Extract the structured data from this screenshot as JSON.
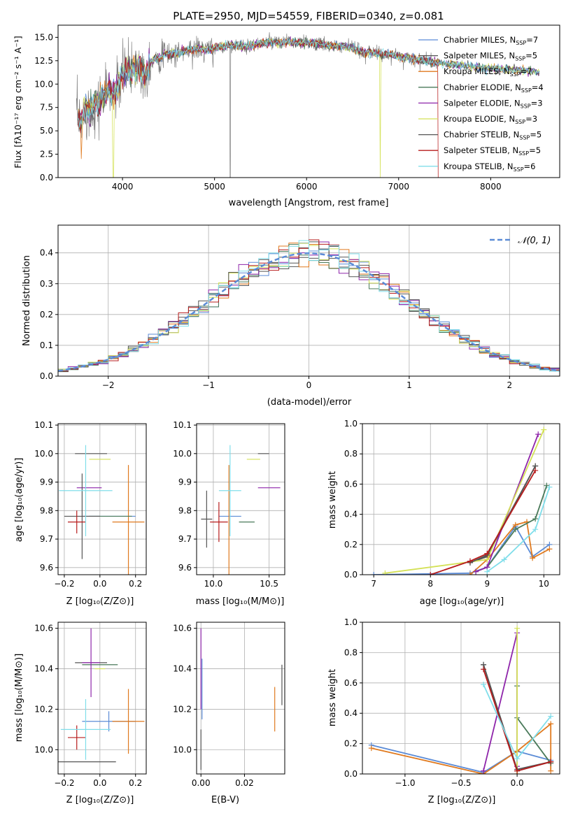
{
  "colors": {
    "Chabrier MILES": "#1f77b4",
    "Salpeter MILES": "#555555",
    "Kroupa MILES": "#e07a1f",
    "Chabrier ELODIE": "#4a7a5a",
    "Salpeter ELODIE": "#8e24aa",
    "Kroupa ELODIE": "#d4e157",
    "Chabrier STELIB": "#555555",
    "Salpeter STELIB": "#b71c1c",
    "Kroupa STELIB": "#80deea",
    "normal": "#5b8bd6"
  },
  "chart_data": [
    {
      "type": "line",
      "title": "PLATE=2950, MJD=54559, FIBERID=0340, z=0.081",
      "xlabel": "wavelength [Angstrom, rest frame]",
      "ylabel": "Flux [fλ10⁻¹⁷ erg cm⁻² s⁻¹ A⁻¹]",
      "xlim": [
        3300,
        8750
      ],
      "ylim": [
        0,
        16.3
      ],
      "xticks": [
        "4000",
        "5000",
        "6000",
        "7000",
        "8000"
      ],
      "yticks": [
        "0.0",
        "2.5",
        "5.0",
        "7.5",
        "10.0",
        "12.5",
        "15.0"
      ],
      "legend": "right",
      "series": [
        {
          "name": "Chabrier MILES, N_SSP=7",
          "label_pre": "Chabrier MILES, N",
          "label_sub": "SSP",
          "label_post": "=7"
        },
        {
          "name": "Salpeter MILES, N_SSP=5",
          "label_pre": "Salpeter MILES, N",
          "label_sub": "SSP",
          "label_post": "=5"
        },
        {
          "name": "Kroupa MILES, N_SSP=7",
          "label_pre": "Kroupa MILES, N",
          "label_sub": "SSP",
          "label_post": "=7"
        },
        {
          "name": "Chabrier ELODIE, N_SSP=4",
          "label_pre": "Chabrier ELODIE, N",
          "label_sub": "SSP",
          "label_post": "=4"
        },
        {
          "name": "Salpeter ELODIE, N_SSP=3",
          "label_pre": "Salpeter ELODIE, N",
          "label_sub": "SSP",
          "label_post": "=3"
        },
        {
          "name": "Kroupa ELODIE, N_SSP=3",
          "label_pre": "Kroupa ELODIE, N",
          "label_sub": "SSP",
          "label_post": "=3"
        },
        {
          "name": "Chabrier STELIB, N_SSP=5",
          "label_pre": "Chabrier STELIB, N",
          "label_sub": "SSP",
          "label_post": "=5"
        },
        {
          "name": "Salpeter STELIB, N_SSP=5",
          "label_pre": "Salpeter STELIB, N",
          "label_sub": "SSP",
          "label_post": "=5"
        },
        {
          "name": "Kroupa STELIB, N_SSP=6",
          "label_pre": "Kroupa STELIB, N",
          "label_sub": "SSP",
          "label_post": "=6"
        }
      ],
      "data_spectrum": {
        "x": [
          3500,
          3550,
          3600,
          3650,
          3700,
          3750,
          3800,
          3850,
          3900,
          3950,
          4000,
          4050,
          4100,
          4150,
          4200,
          4250,
          4300,
          4350,
          4400,
          4450,
          4500,
          4600,
          4700,
          4800,
          4900,
          5000,
          5100,
          5200,
          5300,
          5400,
          5500,
          5600,
          5700,
          5800,
          5900,
          6000,
          6100,
          6200,
          6300,
          6400,
          6500,
          6600,
          6700,
          6800,
          6900,
          7000,
          7100,
          7200,
          7300,
          7400,
          7500,
          7600,
          7700,
          7800,
          7900,
          8000,
          8100,
          8200,
          8300,
          8400,
          8500
        ],
        "y": [
          6.8,
          5.8,
          7.5,
          7.0,
          8.2,
          7.8,
          9.0,
          9.3,
          8.7,
          9.6,
          11.0,
          11.6,
          11.5,
          12.0,
          11.7,
          10.8,
          12.3,
          12.8,
          12.6,
          13.2,
          13.2,
          13.3,
          13.6,
          13.8,
          13.6,
          13.8,
          14.1,
          14.2,
          14.0,
          14.1,
          14.3,
          14.5,
          14.4,
          14.6,
          14.4,
          14.4,
          14.3,
          14.2,
          14.0,
          14.0,
          13.9,
          13.4,
          13.4,
          13.2,
          13.2,
          12.9,
          12.8,
          12.6,
          12.5,
          12.3,
          12.2,
          12.1,
          12.0,
          11.9,
          11.8,
          11.7,
          11.6,
          11.6,
          11.5,
          11.4,
          11.3
        ]
      }
    },
    {
      "type": "histogram",
      "xlabel": "(data-model)/error",
      "ylabel": "Normed distribution",
      "xlim": [
        -2.5,
        2.5
      ],
      "ylim": [
        0,
        0.49
      ],
      "xticks": [
        "−2",
        "−1",
        "0",
        "1",
        "2"
      ],
      "yticks": [
        "0.0",
        "0.1",
        "0.2",
        "0.3",
        "0.4"
      ],
      "legend_label": "𝒩(0, 1)",
      "legend": "top-right",
      "bin_width": 0.1,
      "bins_start": -2.5
    },
    {
      "type": "errorbar",
      "xlabel": "Z [log₁₀(Z/Z⊙)]",
      "ylabel": "age  [log₁₀(age/yr)]",
      "xlim": [
        -0.235,
        0.26
      ],
      "ylim": [
        9.575,
        10.105
      ],
      "xticks": [
        "−0.2",
        "0.0",
        "0.2"
      ],
      "yticks": [
        "9.6",
        "9.7",
        "9.8",
        "9.9",
        "10.0",
        "10.1"
      ],
      "points": [
        {
          "x": 0.05,
          "xe": 0.15,
          "y": 9.78,
          "ye": 0.0
        },
        {
          "x": -0.05,
          "xe": 0.09,
          "y": 10.0,
          "ye": 0.0
        },
        {
          "x": 0.16,
          "xe": 0.09,
          "y": 9.76,
          "ye": 0.2
        },
        {
          "x": 0.06,
          "xe": 0.12,
          "y": 9.78,
          "ye": 0.0
        },
        {
          "x": -0.06,
          "xe": 0.07,
          "y": 9.88,
          "ye": 0.0
        },
        {
          "x": 0.0,
          "xe": 0.06,
          "y": 9.98,
          "ye": 0.0
        },
        {
          "x": -0.1,
          "xe": 0.1,
          "y": 9.78,
          "ye": 0.15
        },
        {
          "x": -0.13,
          "xe": 0.05,
          "y": 9.76,
          "ye": 0.04
        },
        {
          "x": -0.08,
          "xe": 0.15,
          "y": 9.87,
          "ye": 0.16
        }
      ]
    },
    {
      "type": "errorbar",
      "xlabel": "mass [log₁₀(M/M⊙)]",
      "ylabel": "",
      "xlim": [
        9.85,
        10.64
      ],
      "ylim": [
        9.575,
        10.105
      ],
      "xticks": [
        "10.0",
        "10.5"
      ],
      "yticks": [
        "9.6",
        "9.7",
        "9.8",
        "9.9",
        "10.0",
        "10.1"
      ],
      "points": [
        {
          "x": 10.15,
          "xe": 0.1,
          "y": 9.78,
          "ye": 0.0
        },
        {
          "x": 10.45,
          "xe": 0.05,
          "y": 10.0,
          "ye": 0.0
        },
        {
          "x": 10.14,
          "xe": 0.0,
          "y": 9.76,
          "ye": 0.2
        },
        {
          "x": 10.3,
          "xe": 0.07,
          "y": 9.76,
          "ye": 0.0
        },
        {
          "x": 10.5,
          "xe": 0.1,
          "y": 9.88,
          "ye": 0.0
        },
        {
          "x": 10.36,
          "xe": 0.06,
          "y": 9.98,
          "ye": 0.0
        },
        {
          "x": 9.94,
          "xe": 0.05,
          "y": 9.77,
          "ye": 0.1
        },
        {
          "x": 10.05,
          "xe": 0.08,
          "y": 9.76,
          "ye": 0.07
        },
        {
          "x": 10.15,
          "xe": 0.1,
          "y": 9.87,
          "ye": 0.16
        }
      ]
    },
    {
      "type": "line",
      "xlabel": "age  [log₁₀(age/yr)]",
      "ylabel": "mass weight",
      "xlim": [
        6.8,
        10.28
      ],
      "ylim": [
        0,
        1.0
      ],
      "xticks": [
        "7",
        "8",
        "9",
        "10"
      ],
      "yticks": [
        "0.0",
        "0.2",
        "0.4",
        "0.6",
        "0.8",
        "1.0"
      ],
      "series": [
        {
          "x": [
            7.0,
            8.7,
            9.0,
            9.5,
            9.8,
            10.1
          ],
          "y": [
            0.0,
            0.01,
            0.05,
            0.32,
            0.12,
            0.2
          ]
        },
        {
          "x": [
            8.7,
            9.0,
            9.85
          ],
          "y": [
            0.08,
            0.12,
            0.72
          ]
        },
        {
          "x": [
            8.7,
            9.0,
            9.5,
            9.7,
            9.8,
            10.1
          ],
          "y": [
            0.0,
            0.1,
            0.33,
            0.35,
            0.11,
            0.17
          ]
        },
        {
          "x": [
            8.8,
            9.0,
            9.5,
            9.85,
            10.05
          ],
          "y": [
            0.02,
            0.05,
            0.3,
            0.37,
            0.59
          ]
        },
        {
          "x": [
            8.8,
            9.0,
            9.9
          ],
          "y": [
            0.02,
            0.05,
            0.93
          ]
        },
        {
          "x": [
            7.2,
            9.0,
            10.0
          ],
          "y": [
            0.01,
            0.1,
            0.96
          ]
        },
        {
          "x": [
            8.7,
            9.0,
            9.85
          ],
          "y": [
            0.08,
            0.13,
            0.72
          ]
        },
        {
          "x": [
            8.0,
            8.7,
            9.0,
            9.85
          ],
          "y": [
            0.0,
            0.09,
            0.14,
            0.69
          ]
        },
        {
          "x": [
            9.0,
            9.3,
            9.85,
            10.1
          ],
          "y": [
            0.02,
            0.1,
            0.3,
            0.58
          ]
        }
      ]
    },
    {
      "type": "errorbar",
      "xlabel": "Z [log₁₀(Z/Z⊙)]",
      "ylabel": "mass [log₁₀(M/M⊙)]",
      "xlim": [
        -0.235,
        0.26
      ],
      "ylim": [
        9.88,
        10.63
      ],
      "xticks": [
        "−0.2",
        "0.0",
        "0.2"
      ],
      "yticks": [
        "10.0",
        "10.2",
        "10.4",
        "10.6"
      ],
      "points": [
        {
          "x": 0.05,
          "xe": 0.15,
          "y": 10.14,
          "ye": 0.05
        },
        {
          "x": -0.05,
          "xe": 0.09,
          "y": 10.43,
          "ye": 0.0
        },
        {
          "x": 0.16,
          "xe": 0.09,
          "y": 10.14,
          "ye": 0.16
        },
        {
          "x": 0.0,
          "xe": 0.1,
          "y": 10.42,
          "ye": 0.0
        },
        {
          "x": -0.05,
          "xe": 0.05,
          "y": 10.43,
          "ye": 0.17
        },
        {
          "x": 0.0,
          "xe": 0.03,
          "y": 10.4,
          "ye": 0.0
        },
        {
          "x": -0.11,
          "xe": 0.2,
          "y": 9.94,
          "ye": 0.0
        },
        {
          "x": -0.13,
          "xe": 0.05,
          "y": 10.06,
          "ye": 0.06
        },
        {
          "x": -0.08,
          "xe": 0.14,
          "y": 10.1,
          "ye": 0.15
        }
      ]
    },
    {
      "type": "errorbar",
      "xlabel": "E(B-V)",
      "ylabel": "",
      "xlim": [
        -0.002,
        0.0385
      ],
      "ylim": [
        9.88,
        10.63
      ],
      "xticks": [
        "0.00",
        "0.02"
      ],
      "yticks": [
        "10.0",
        "10.2",
        "10.4",
        "10.6"
      ],
      "points": [
        {
          "x": 0.0,
          "xe": 0.0,
          "y": 10.4,
          "ye": 0.2
        },
        {
          "x": 0.0,
          "xe": 0.0,
          "y": 10.0,
          "ye": 0.1
        },
        {
          "x": 0.0339,
          "xe": 0.0,
          "y": 10.2,
          "ye": 0.11
        },
        {
          "x": 0.0372,
          "xe": 0.0,
          "y": 10.32,
          "ye": 0.1
        },
        {
          "x": 0.0005,
          "xe": 0.0,
          "y": 10.3,
          "ye": 0.15
        }
      ]
    },
    {
      "type": "line",
      "xlabel": "Z [log₁₀(Z/Z⊙)]",
      "ylabel": "mass weight",
      "xlim": [
        -1.38,
        0.38
      ],
      "ylim": [
        0,
        1.0
      ],
      "xticks": [
        "−1.0",
        "−0.5",
        "0.0"
      ],
      "yticks": [
        "0.0",
        "0.2",
        "0.4",
        "0.6",
        "0.8",
        "1.0"
      ],
      "series": [
        {
          "x": [
            -1.3,
            -0.3,
            0.0,
            0.3
          ],
          "y": [
            0.19,
            0.01,
            0.15,
            0.09
          ]
        },
        {
          "x": [
            -0.3,
            0.0,
            0.3
          ],
          "y": [
            0.72,
            0.02,
            0.08
          ]
        },
        {
          "x": [
            -1.3,
            -0.3,
            0.0,
            0.3,
            0.3
          ],
          "y": [
            0.17,
            0.0,
            0.15,
            0.33,
            0.02
          ]
        },
        {
          "x": [
            0.0,
            0.0,
            0.3
          ],
          "y": [
            0.58,
            0.37,
            0.07
          ]
        },
        {
          "x": [
            -0.3,
            0.0,
            0.0
          ],
          "y": [
            0.02,
            0.93,
            0.05
          ]
        },
        {
          "x": [
            0.0,
            0.0
          ],
          "y": [
            0.96,
            0.0
          ]
        },
        {
          "x": [
            -0.3,
            0.0,
            0.3
          ],
          "y": [
            0.72,
            0.03,
            0.08
          ]
        },
        {
          "x": [
            -0.3,
            0.0,
            0.3
          ],
          "y": [
            0.69,
            0.02,
            0.08
          ]
        },
        {
          "x": [
            -0.3,
            0.0,
            0.3
          ],
          "y": [
            0.59,
            0.1,
            0.38
          ]
        }
      ]
    }
  ]
}
